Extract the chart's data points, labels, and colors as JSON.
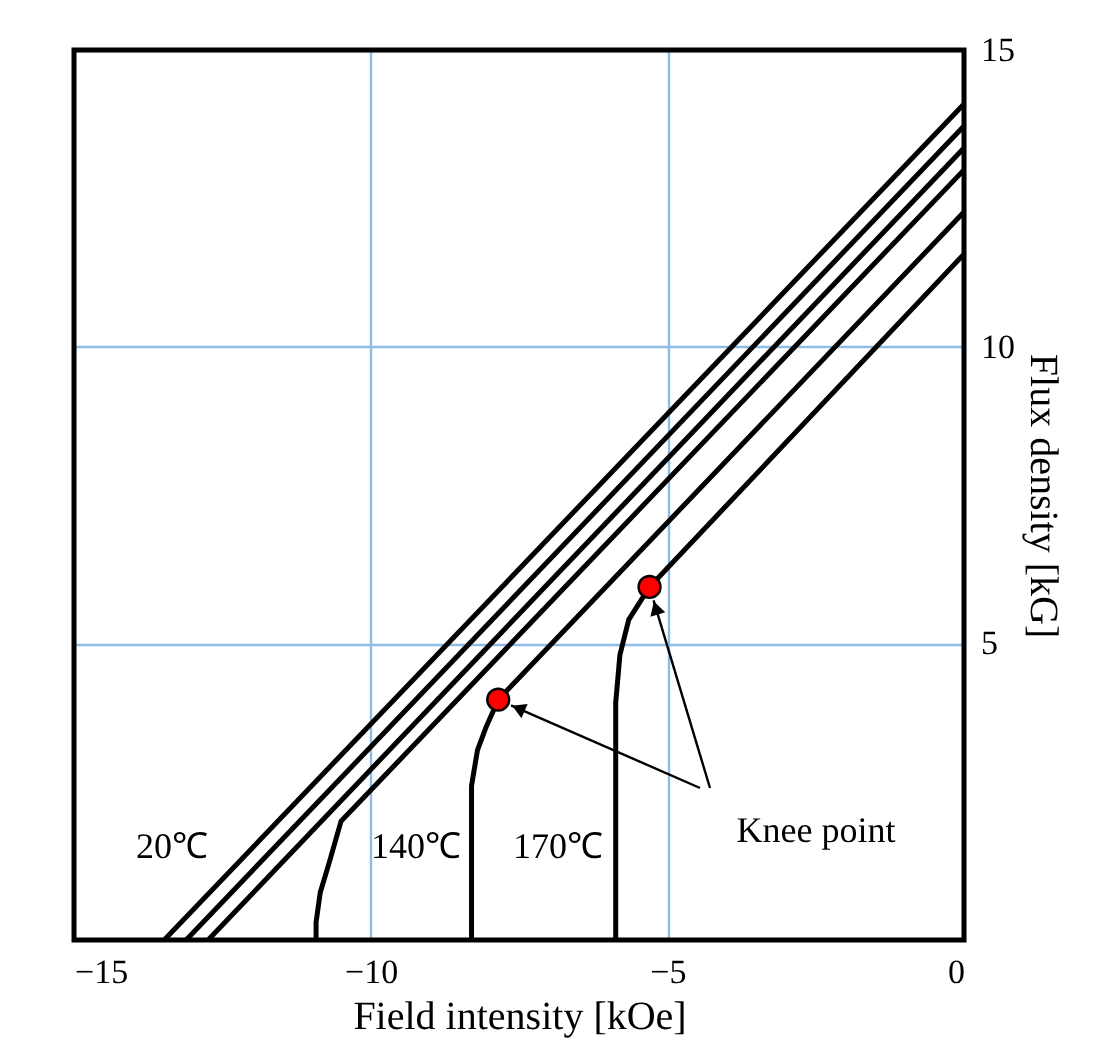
{
  "chart_data": {
    "type": "line",
    "xlabel": "Field intensity [kOe]",
    "ylabel": "Flux density [kG]",
    "xlim": [
      -15,
      0
    ],
    "xticks": [
      -15,
      -10,
      -5,
      0
    ],
    "ylim": [
      0,
      15
    ],
    "yticks": [
      5,
      10,
      15
    ],
    "grid": true,
    "line_style": "solid",
    "series": [
      {
        "color": "#000000",
        "x": [
          -13.48,
          0
        ],
        "values": [
          0,
          14.09
        ]
      },
      {
        "color": "#000000",
        "x": [
          -13.11,
          0
        ],
        "values": [
          0,
          13.72
        ]
      },
      {
        "color": "#000000",
        "x": [
          -12.74,
          0
        ],
        "values": [
          0,
          13.35
        ]
      },
      {
        "color": "#000000",
        "x": [
          -10.92,
          -10.92,
          -10.85,
          -10.7,
          -10.5,
          0
        ],
        "values": [
          0,
          0.3,
          0.8,
          1.3,
          2.0,
          12.98
        ]
      },
      {
        "color": "#000000",
        "x": [
          -8.3,
          -8.3,
          -8.2,
          -8.05,
          -7.85,
          0
        ],
        "values": [
          0,
          2.6,
          3.2,
          3.6,
          4.05,
          12.27
        ]
      },
      {
        "color": "#000000",
        "x": [
          -5.87,
          -5.87,
          -5.8,
          -5.65,
          -5.3,
          0
        ],
        "values": [
          0,
          4.0,
          4.8,
          5.4,
          5.95,
          11.56
        ]
      },
      {
        "type": "scatter",
        "marker": "circle",
        "color": "#ff0000",
        "x": [
          -7.85,
          -5.3
        ],
        "values": [
          4.05,
          5.95
        ]
      }
    ],
    "annotations": [
      "20℃",
      "140℃",
      "170℃",
      {
        "text": "Knee point",
        "x": -5.3,
        "y": 5.95
      }
    ]
  }
}
